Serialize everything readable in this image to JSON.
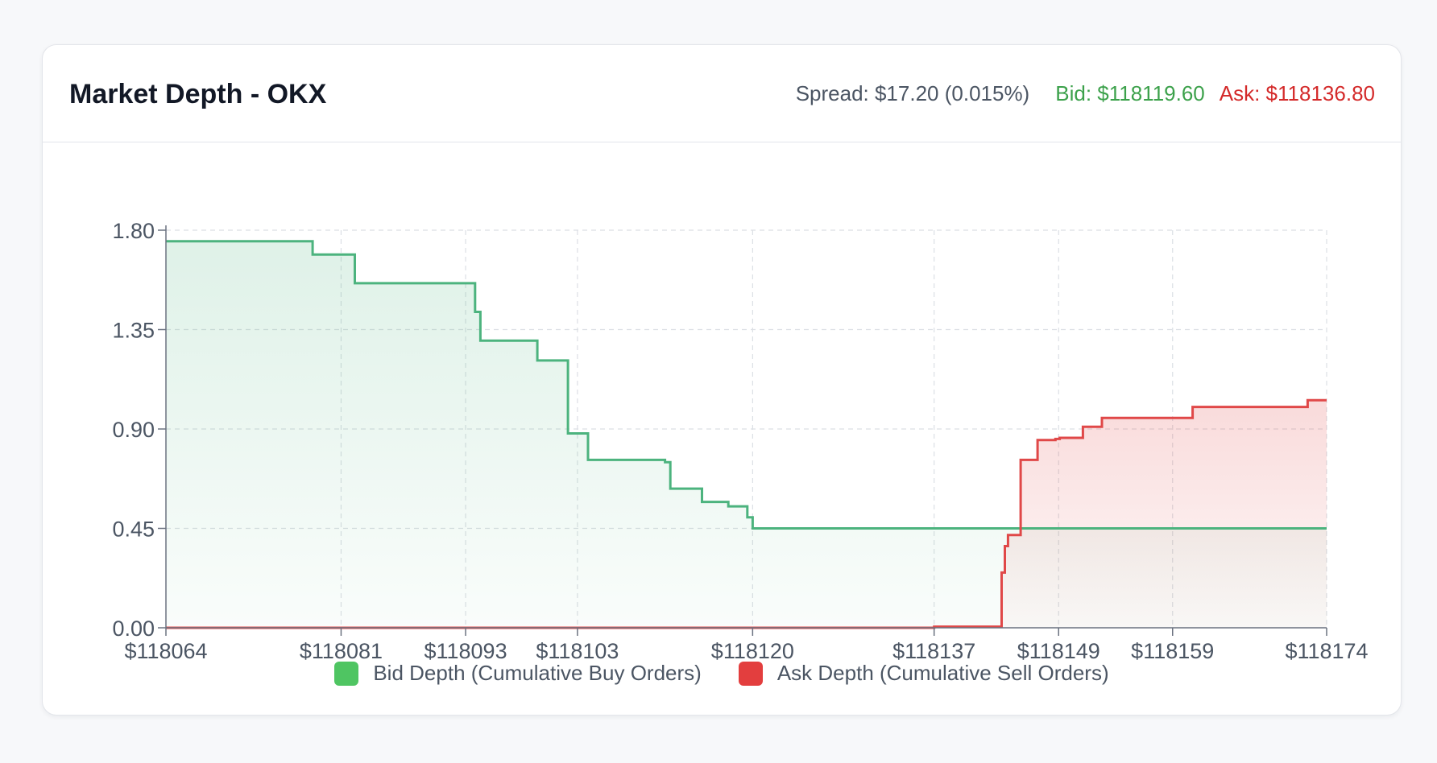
{
  "header": {
    "title": "Market Depth - OKX",
    "spread": "Spread: $17.20 (0.015%)",
    "bid": "Bid: $118119.60",
    "ask": "Ask: $118136.80"
  },
  "colors": {
    "bid": "#4cb37e",
    "ask": "#e04848",
    "bid_swatch": "#4fc562",
    "ask_swatch": "#e33e3e"
  },
  "legend": {
    "bid_label": "Bid Depth (Cumulative Buy Orders)",
    "ask_label": "Ask Depth (Cumulative Sell Orders)"
  },
  "chart_data": {
    "type": "area",
    "title": "",
    "xlabel": "",
    "ylabel": "",
    "xlim": [
      118064,
      118174
    ],
    "ylim": [
      0,
      1.8
    ],
    "grid": true,
    "legend_position": "bottom",
    "y_ticks": [
      "0.00",
      "0.45",
      "0.90",
      "1.35",
      "1.80"
    ],
    "y_tick_values": [
      0,
      0.45,
      0.9,
      1.35,
      1.8
    ],
    "x_ticks": [
      "$118064",
      "$118081",
      "$118093",
      "$118103",
      "$118120",
      "$118137",
      "$118149",
      "$118159",
      "$118174"
    ],
    "x_tick_values": [
      118064,
      118080.6,
      118092.4,
      118103,
      118119.6,
      118136.8,
      118148.6,
      118159.4,
      118174
    ],
    "series": [
      {
        "name": "Bid Depth (Cumulative Buy Orders)",
        "points": [
          [
            118064.0,
            1.75
          ],
          [
            118077.9,
            1.75
          ],
          [
            118077.9,
            1.69
          ],
          [
            118081.9,
            1.69
          ],
          [
            118081.9,
            1.56
          ],
          [
            118093.3,
            1.56
          ],
          [
            118093.3,
            1.43
          ],
          [
            118093.8,
            1.43
          ],
          [
            118093.8,
            1.3
          ],
          [
            118099.2,
            1.3
          ],
          [
            118099.2,
            1.21
          ],
          [
            118102.1,
            1.21
          ],
          [
            118102.1,
            0.88
          ],
          [
            118104.0,
            0.88
          ],
          [
            118104.0,
            0.76
          ],
          [
            118111.3,
            0.76
          ],
          [
            118111.3,
            0.75
          ],
          [
            118111.8,
            0.75
          ],
          [
            118111.8,
            0.63
          ],
          [
            118114.8,
            0.63
          ],
          [
            118114.8,
            0.57
          ],
          [
            118117.3,
            0.57
          ],
          [
            118117.3,
            0.55
          ],
          [
            118119.1,
            0.55
          ],
          [
            118119.1,
            0.5
          ],
          [
            118119.6,
            0.5
          ],
          [
            118119.6,
            0.45
          ],
          [
            118174.0,
            0.45
          ]
        ]
      },
      {
        "name": "Ask Depth (Cumulative Sell Orders)",
        "points": [
          [
            118064.0,
            0.0
          ],
          [
            118136.8,
            0.0
          ],
          [
            118136.8,
            0.005
          ],
          [
            118143.2,
            0.005
          ],
          [
            118143.2,
            0.25
          ],
          [
            118143.5,
            0.25
          ],
          [
            118143.5,
            0.37
          ],
          [
            118143.8,
            0.37
          ],
          [
            118143.8,
            0.42
          ],
          [
            118145.0,
            0.42
          ],
          [
            118145.0,
            0.76
          ],
          [
            118146.6,
            0.76
          ],
          [
            118146.6,
            0.85
          ],
          [
            118148.3,
            0.85
          ],
          [
            118148.3,
            0.855
          ],
          [
            118148.7,
            0.855
          ],
          [
            118148.7,
            0.86
          ],
          [
            118150.9,
            0.86
          ],
          [
            118150.9,
            0.91
          ],
          [
            118152.7,
            0.91
          ],
          [
            118152.7,
            0.95
          ],
          [
            118161.3,
            0.95
          ],
          [
            118161.3,
            1.0
          ],
          [
            118172.2,
            1.0
          ],
          [
            118172.2,
            1.03
          ],
          [
            118174.0,
            1.03
          ]
        ]
      }
    ]
  }
}
